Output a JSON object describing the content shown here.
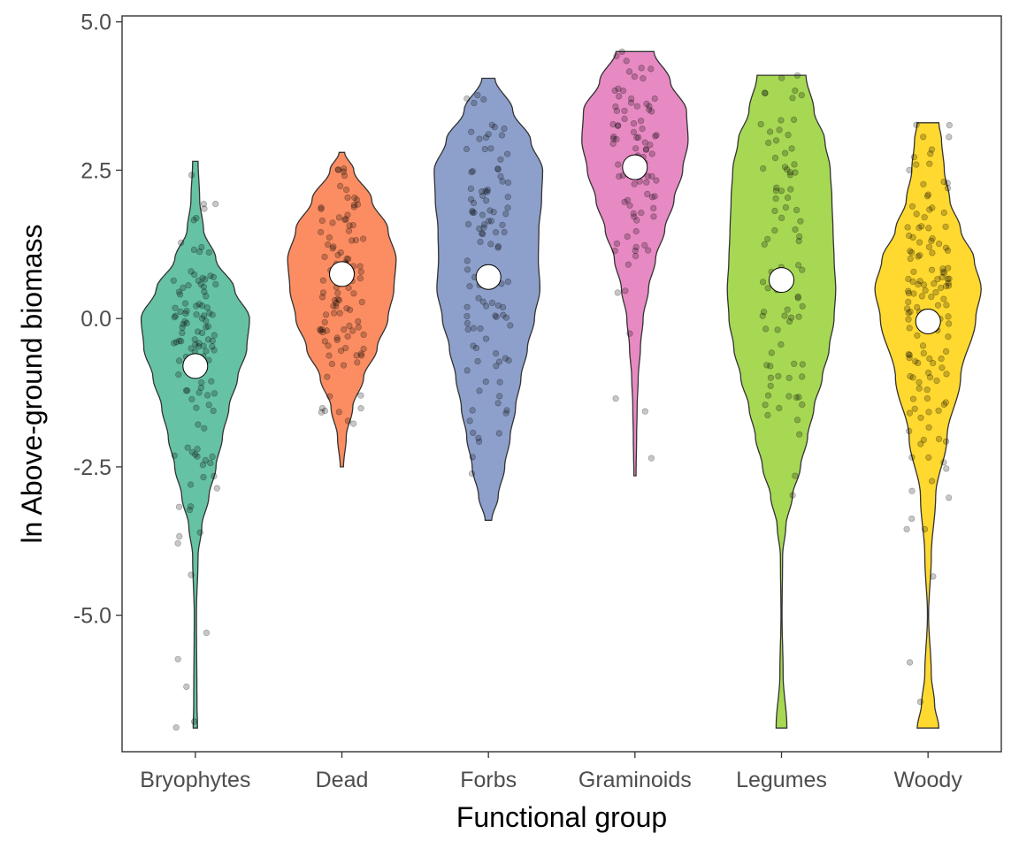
{
  "chart_data": {
    "type": "violin",
    "xlabel": "Functional group",
    "ylabel": "ln Above-ground biomass",
    "ylim": [
      -7.3,
      5.1
    ],
    "yticks": [
      -5.0,
      -2.5,
      0.0,
      2.5,
      5.0
    ],
    "ytick_labels": [
      "-5.0",
      "-2.5",
      "0.0",
      "2.5",
      "5.0"
    ],
    "grid": false,
    "legend": "none",
    "categories": [
      "Bryophytes",
      "Dead",
      "Forbs",
      "Graminoids",
      "Legumes",
      "Woody"
    ],
    "colors": [
      "#66c2a5",
      "#fc8d62",
      "#8da0cb",
      "#e78ac3",
      "#a6d854",
      "#ffd92f"
    ],
    "groups": [
      {
        "name": "Bryophytes",
        "min": -6.9,
        "max": 2.65,
        "mean": -0.8,
        "density": [
          [
            -6.9,
            0.04
          ],
          [
            -6.5,
            0.03
          ],
          [
            -5.0,
            0.02
          ],
          [
            -4.0,
            0.05
          ],
          [
            -3.5,
            0.12
          ],
          [
            -3.0,
            0.25
          ],
          [
            -2.5,
            0.38
          ],
          [
            -2.0,
            0.5
          ],
          [
            -1.5,
            0.62
          ],
          [
            -1.0,
            0.78
          ],
          [
            -0.5,
            0.95
          ],
          [
            0.0,
            1.0
          ],
          [
            0.5,
            0.72
          ],
          [
            1.0,
            0.38
          ],
          [
            1.5,
            0.15
          ],
          [
            2.0,
            0.08
          ],
          [
            2.65,
            0.05
          ]
        ]
      },
      {
        "name": "Dead",
        "min": -2.5,
        "max": 2.8,
        "mean": 0.75,
        "density": [
          [
            -2.5,
            0.03
          ],
          [
            -2.0,
            0.08
          ],
          [
            -1.5,
            0.2
          ],
          [
            -1.0,
            0.4
          ],
          [
            -0.5,
            0.65
          ],
          [
            0.0,
            0.85
          ],
          [
            0.5,
            0.96
          ],
          [
            1.0,
            1.0
          ],
          [
            1.5,
            0.85
          ],
          [
            2.0,
            0.55
          ],
          [
            2.5,
            0.22
          ],
          [
            2.8,
            0.05
          ]
        ]
      },
      {
        "name": "Forbs",
        "min": -3.4,
        "max": 4.05,
        "mean": 0.7,
        "density": [
          [
            -3.4,
            0.06
          ],
          [
            -3.0,
            0.18
          ],
          [
            -2.5,
            0.3
          ],
          [
            -2.0,
            0.4
          ],
          [
            -1.5,
            0.5
          ],
          [
            -1.0,
            0.6
          ],
          [
            -0.5,
            0.72
          ],
          [
            0.0,
            0.85
          ],
          [
            0.5,
            0.95
          ],
          [
            1.0,
            0.92
          ],
          [
            1.5,
            0.93
          ],
          [
            2.0,
            0.98
          ],
          [
            2.5,
            1.0
          ],
          [
            3.0,
            0.78
          ],
          [
            3.5,
            0.45
          ],
          [
            4.05,
            0.12
          ]
        ]
      },
      {
        "name": "Graminoids",
        "min": -2.65,
        "max": 4.5,
        "mean": 2.55,
        "density": [
          [
            -2.65,
            0.02
          ],
          [
            -2.0,
            0.03
          ],
          [
            -1.5,
            0.04
          ],
          [
            -1.0,
            0.06
          ],
          [
            -0.5,
            0.1
          ],
          [
            0.0,
            0.15
          ],
          [
            0.5,
            0.25
          ],
          [
            1.0,
            0.38
          ],
          [
            1.5,
            0.55
          ],
          [
            2.0,
            0.72
          ],
          [
            2.5,
            0.88
          ],
          [
            3.0,
            0.98
          ],
          [
            3.5,
            0.95
          ],
          [
            4.0,
            0.65
          ],
          [
            4.5,
            0.35
          ]
        ]
      },
      {
        "name": "Legumes",
        "min": -6.9,
        "max": 4.1,
        "mean": 0.65,
        "density": [
          [
            -6.9,
            0.1
          ],
          [
            -6.0,
            0.03
          ],
          [
            -5.0,
            0.01
          ],
          [
            -4.0,
            0.02
          ],
          [
            -3.5,
            0.08
          ],
          [
            -3.0,
            0.2
          ],
          [
            -2.5,
            0.35
          ],
          [
            -2.0,
            0.48
          ],
          [
            -1.5,
            0.6
          ],
          [
            -1.0,
            0.75
          ],
          [
            -0.5,
            0.88
          ],
          [
            0.0,
            0.97
          ],
          [
            0.5,
            1.0
          ],
          [
            1.0,
            0.97
          ],
          [
            1.5,
            0.95
          ],
          [
            2.0,
            0.93
          ],
          [
            2.5,
            0.9
          ],
          [
            3.0,
            0.8
          ],
          [
            3.5,
            0.6
          ],
          [
            4.1,
            0.45
          ]
        ]
      },
      {
        "name": "Woody",
        "min": -6.9,
        "max": 3.3,
        "mean": -0.05,
        "density": [
          [
            -6.9,
            0.2
          ],
          [
            -6.5,
            0.12
          ],
          [
            -6.0,
            0.06
          ],
          [
            -5.0,
            0.01
          ],
          [
            -4.0,
            0.06
          ],
          [
            -3.0,
            0.14
          ],
          [
            -2.0,
            0.35
          ],
          [
            -1.0,
            0.6
          ],
          [
            0.0,
            0.88
          ],
          [
            0.5,
            0.98
          ],
          [
            1.0,
            0.85
          ],
          [
            1.5,
            0.6
          ],
          [
            2.0,
            0.4
          ],
          [
            2.5,
            0.3
          ],
          [
            3.0,
            0.25
          ],
          [
            3.3,
            0.2
          ]
        ]
      }
    ]
  }
}
